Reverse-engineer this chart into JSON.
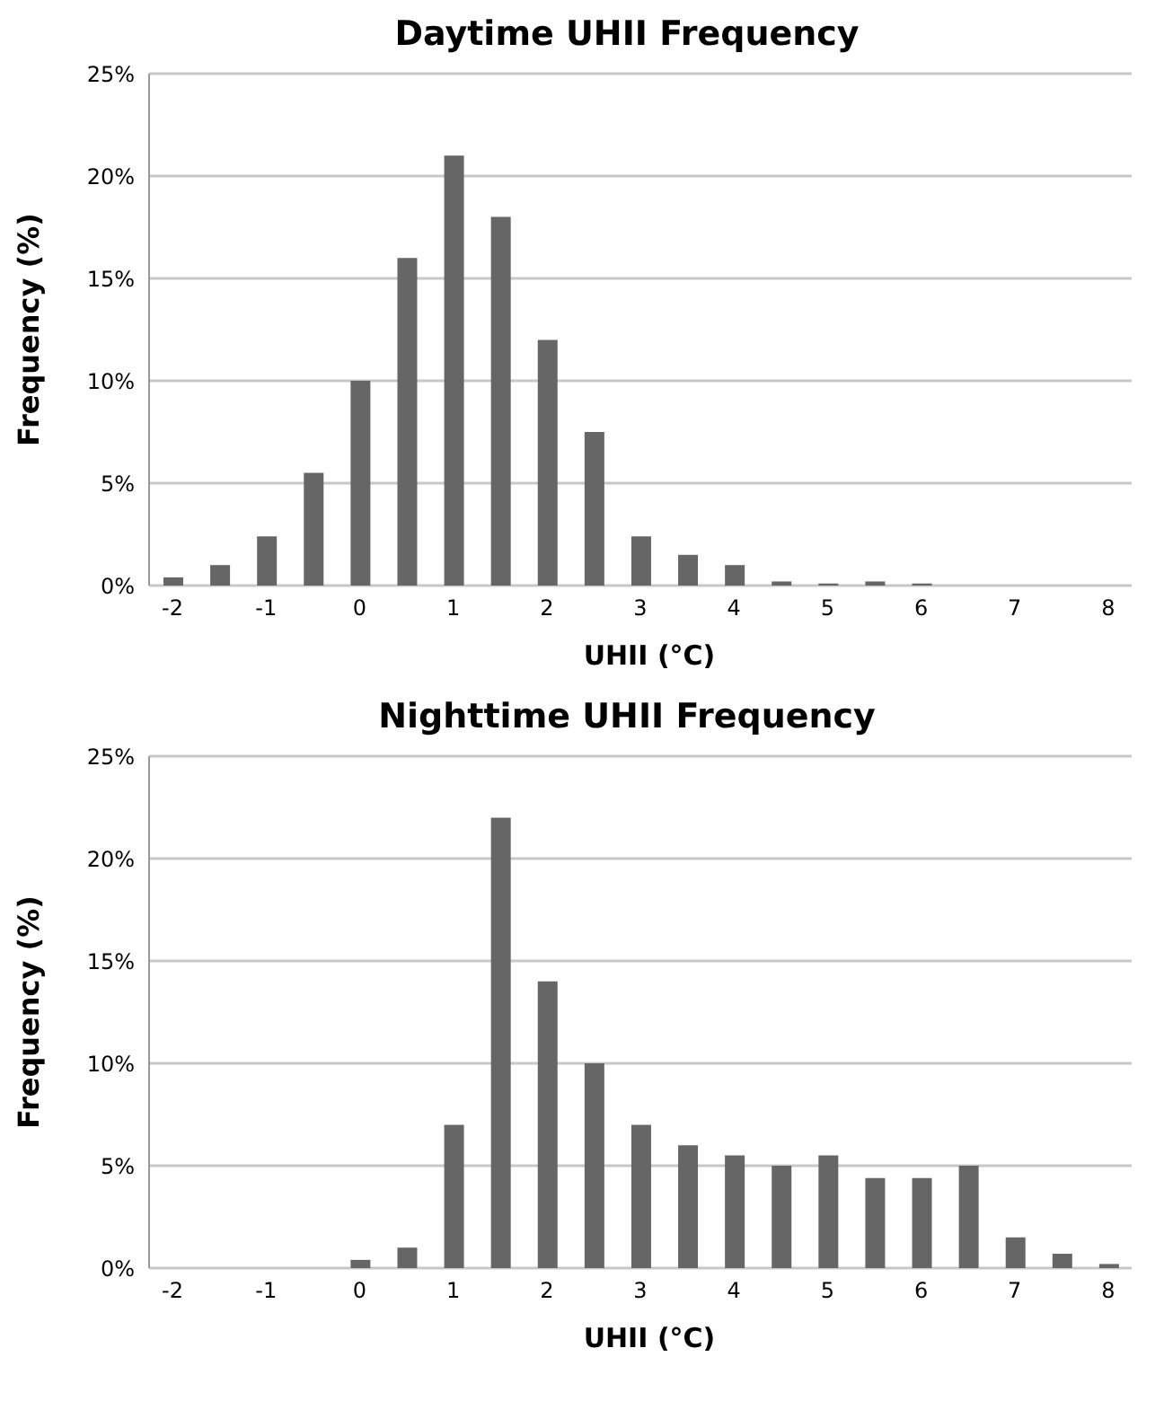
{
  "chart_data": [
    {
      "type": "bar",
      "title": "Daytime UHII Frequency",
      "xlabel": "UHII (°C)",
      "ylabel": "Frequency (%)",
      "categories": [
        "-2",
        null,
        "-1",
        null,
        "0",
        null,
        "1",
        null,
        "2",
        null,
        "3",
        null,
        "4",
        null,
        "5",
        null,
        "6",
        null,
        "7",
        null,
        "8"
      ],
      "values": [
        0.4,
        1,
        2.4,
        5.5,
        10,
        16,
        21,
        18,
        12,
        7.5,
        2.4,
        1.5,
        1,
        0.2,
        0.1,
        0.2,
        0.1,
        0,
        0,
        0,
        0
      ],
      "color": "#666666",
      "ylim": [
        0,
        25
      ],
      "yticks": [
        {
          "value": 0,
          "label": "0%"
        },
        {
          "value": 5,
          "label": "5%"
        },
        {
          "value": 10,
          "label": "10%"
        },
        {
          "value": 15,
          "label": "15%"
        },
        {
          "value": 20,
          "label": "20%"
        },
        {
          "value": 25,
          "label": "25%"
        }
      ],
      "grid": "y"
    },
    {
      "type": "bar",
      "title": "Nighttime UHII Frequency",
      "xlabel": "UHII (°C)",
      "ylabel": "Frequency (%)",
      "categories": [
        "-2",
        null,
        "-1",
        null,
        "0",
        null,
        "1",
        null,
        "2",
        null,
        "3",
        null,
        "4",
        null,
        "5",
        null,
        "6",
        null,
        "7",
        null,
        "8"
      ],
      "values": [
        0,
        0,
        0,
        0,
        0.4,
        1,
        7,
        22,
        14,
        10,
        7,
        6,
        5.5,
        5,
        5.5,
        4.4,
        4.4,
        5,
        1.5,
        0.7,
        0.2
      ],
      "color": "#666666",
      "ylim": [
        0,
        25
      ],
      "yticks": [
        {
          "value": 0,
          "label": "0%"
        },
        {
          "value": 5,
          "label": "5%"
        },
        {
          "value": 10,
          "label": "10%"
        },
        {
          "value": 15,
          "label": "15%"
        },
        {
          "value": 20,
          "label": "20%"
        },
        {
          "value": 25,
          "label": "25%"
        }
      ],
      "grid": "y"
    }
  ]
}
